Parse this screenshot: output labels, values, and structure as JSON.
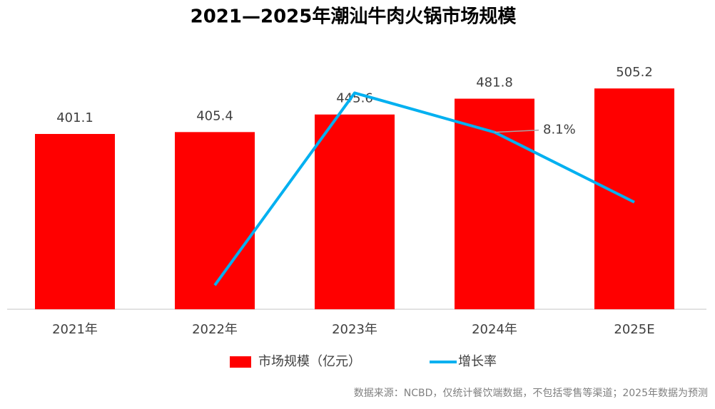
{
  "chart_data": {
    "type": "bar",
    "title": "2021—2025年潮汕牛肉火锅市场规模",
    "categories": [
      "2021年",
      "2022年",
      "2023年",
      "2024年",
      "2025E"
    ],
    "series": [
      {
        "name": "市场规模（亿元）",
        "type": "bar",
        "color": "#ff0000",
        "values": [
          401.1,
          405.4,
          445.6,
          481.8,
          505.2
        ]
      },
      {
        "name": "增长率",
        "type": "line",
        "axis": "y2",
        "color": "#00b0f0",
        "values": [
          null,
          1.1,
          9.9,
          8.1,
          4.9
        ],
        "value_labels": [
          null,
          null,
          null,
          "8.1%",
          null
        ]
      }
    ],
    "ylim": [
      0,
      600
    ],
    "y2lim": [
      0,
      12
    ],
    "source": "数据来源：NCBD，仅统计餐饮端数据，不包括零售等渠道；2025年数据为预测"
  }
}
